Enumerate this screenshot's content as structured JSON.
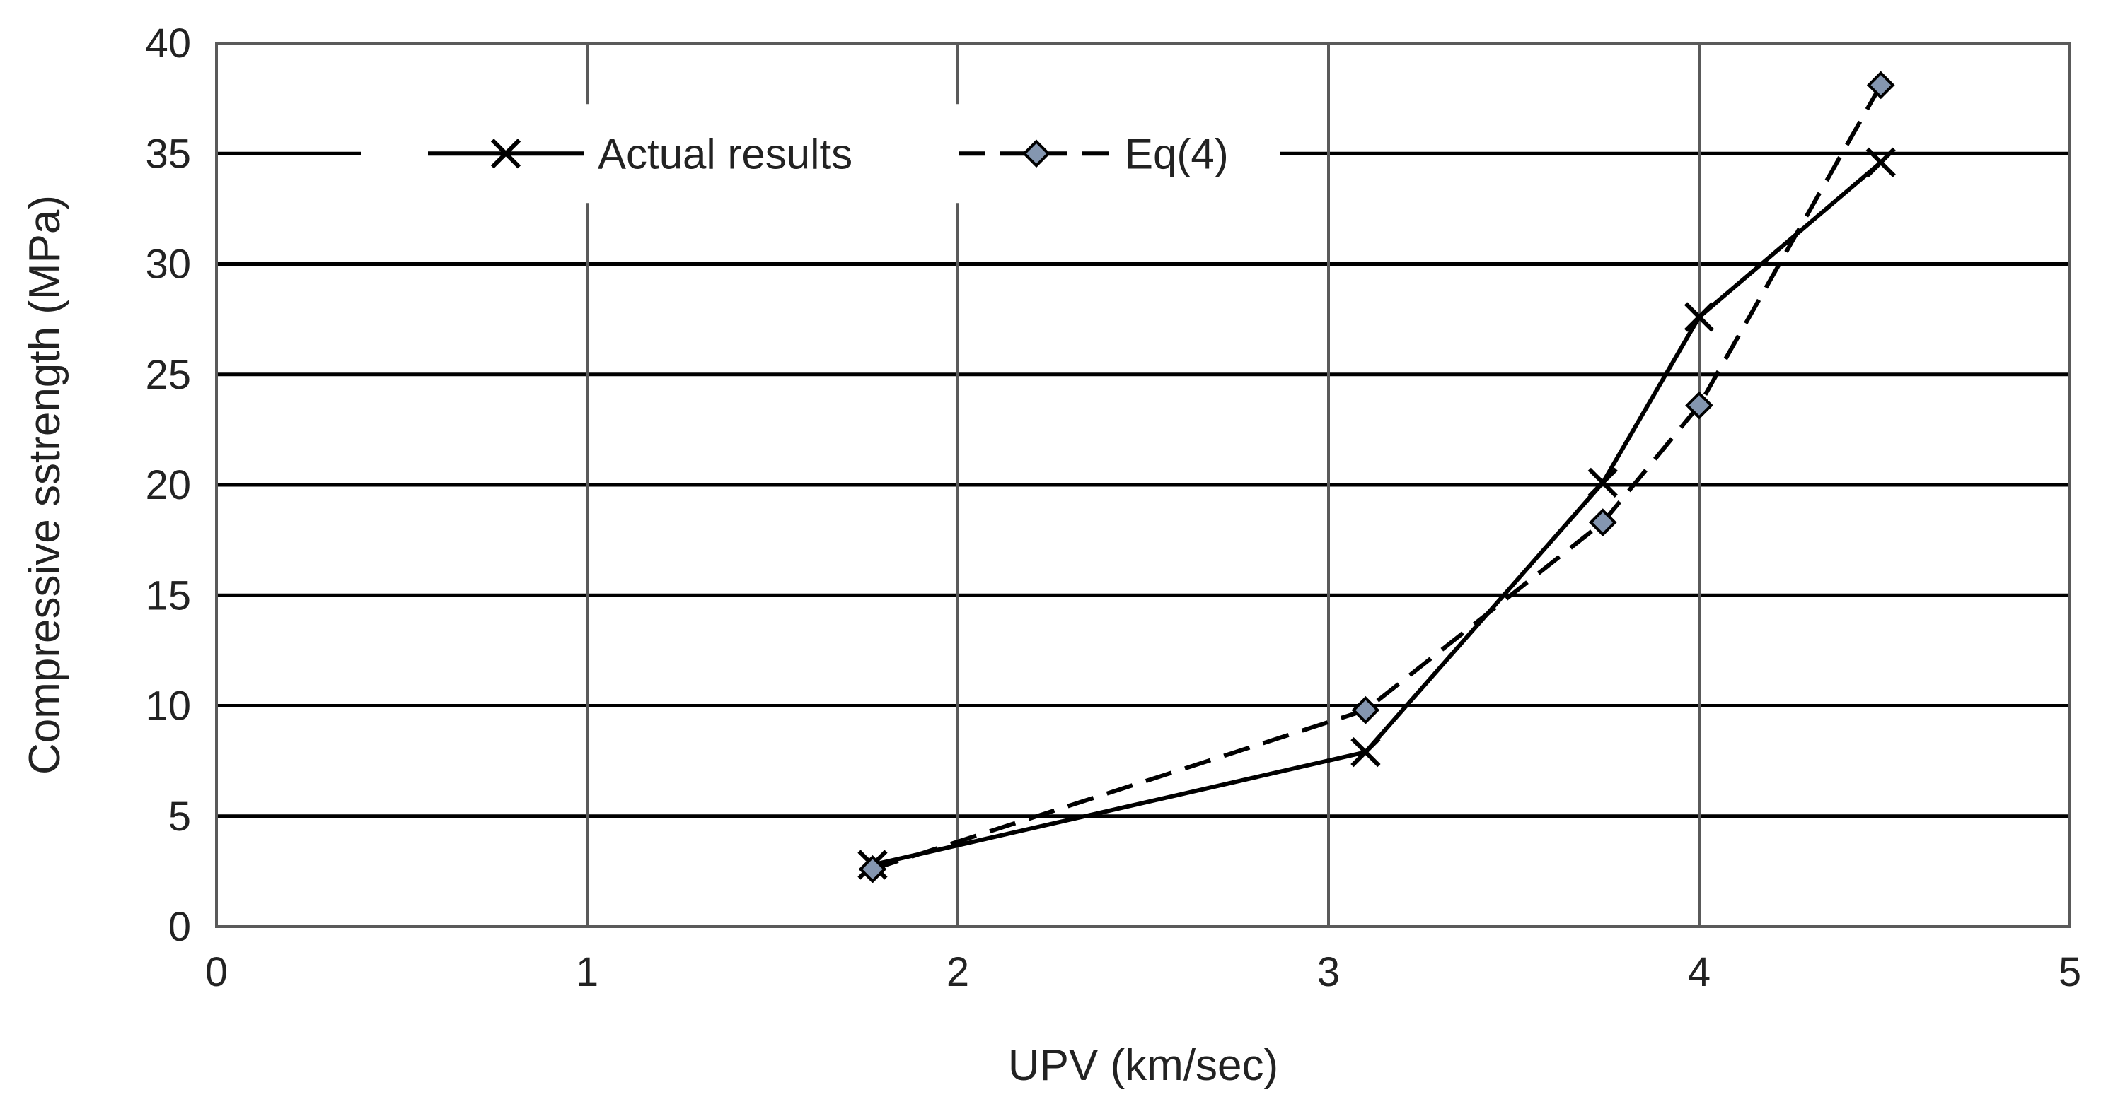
{
  "chart_data": {
    "type": "line",
    "title": "",
    "xlabel": "UPV (km/sec)",
    "ylabel": "Compressive sstrength (MPa)",
    "xlim": [
      0,
      5
    ],
    "ylim": [
      0,
      40
    ],
    "x_ticks": [
      0,
      1,
      2,
      3,
      4,
      5
    ],
    "y_ticks": [
      0,
      5,
      10,
      15,
      20,
      25,
      30,
      35,
      40
    ],
    "grid": true,
    "legend_position": "top-center",
    "series": [
      {
        "name": "Actual results",
        "marker": "x",
        "line_style": "solid",
        "color": "#000000",
        "x": [
          1.77,
          3.1,
          3.74,
          4.0,
          4.49
        ],
        "y": [
          2.8,
          7.9,
          20.1,
          27.6,
          34.6
        ]
      },
      {
        "name": "Eq(4)",
        "marker": "diamond",
        "line_style": "dashed",
        "color": "#000000",
        "marker_fill": "#8496b0",
        "x": [
          1.77,
          3.1,
          3.74,
          4.0,
          4.49
        ],
        "y": [
          2.6,
          9.8,
          18.3,
          23.6,
          38.1
        ]
      }
    ]
  }
}
